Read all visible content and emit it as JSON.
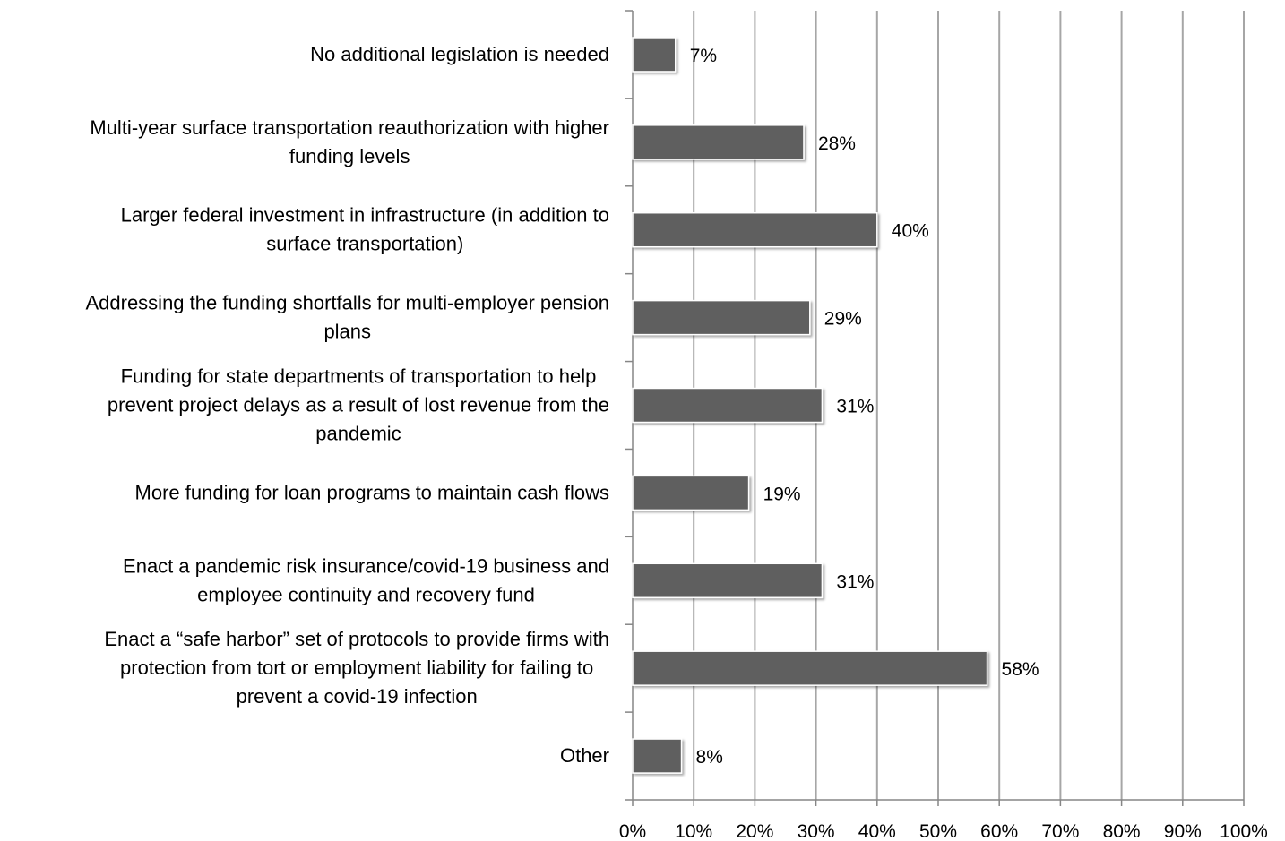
{
  "chart_data": {
    "type": "bar",
    "orientation": "horizontal",
    "categories": [
      "No additional legislation is needed",
      "Multi-year surface transportation reauthorization with higher funding levels",
      "Larger federal investment in infrastructure (in addition to surface transportation)",
      "Addressing the funding shortfalls for multi-employer pension plans",
      "Funding for state departments of transportation to help prevent project delays as a result of lost revenue from the pandemic",
      "More funding for loan programs to maintain cash flows",
      "Enact a pandemic risk insurance/covid-19 business and employee continuity and recovery fund",
      "Enact a “safe harbor” set of protocols to provide firms with protection from tort or employment liability for failing to prevent a covid-19 infection",
      "Other"
    ],
    "category_lines": [
      [
        "No additional legislation is needed"
      ],
      [
        "Multi-year surface transportation reauthorization with higher",
        "funding levels"
      ],
      [
        "Larger federal investment in infrastructure (in addition to",
        "surface transportation)"
      ],
      [
        "Addressing the funding shortfalls for multi-employer pension",
        "plans"
      ],
      [
        "Funding for state departments of transportation to help",
        "prevent project delays as a result of lost revenue from the",
        "pandemic"
      ],
      [
        "More funding for loan programs to maintain cash flows"
      ],
      [
        "Enact a pandemic risk insurance/covid-19 business and",
        "employee continuity and recovery fund"
      ],
      [
        "Enact a “safe harbor” set of protocols to provide firms with",
        "protection from tort or employment liability for failing to",
        "prevent a covid-19 infection"
      ],
      [
        "Other"
      ]
    ],
    "values": [
      7,
      28,
      40,
      29,
      31,
      19,
      31,
      58,
      8
    ],
    "value_labels": [
      "7%",
      "28%",
      "40%",
      "29%",
      "31%",
      "19%",
      "31%",
      "58%",
      "8%"
    ],
    "x_ticks": [
      "0%",
      "10%",
      "20%",
      "30%",
      "40%",
      "50%",
      "60%",
      "70%",
      "80%",
      "90%",
      "100%"
    ],
    "xlim": [
      0,
      100
    ],
    "title": "",
    "xlabel": "",
    "ylabel": "",
    "grid": "vertical",
    "legend": "none",
    "bar_color": "#5f5f5f",
    "grid_color": "#a6a6a6",
    "axis_color": "#868686"
  }
}
